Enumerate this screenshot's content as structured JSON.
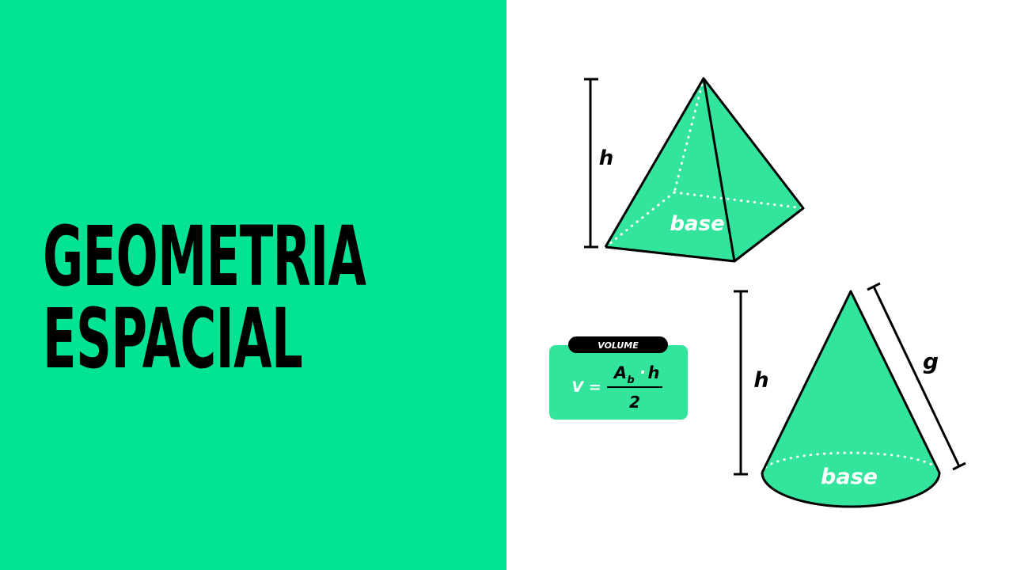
{
  "title": {
    "line1": "GEOMETRIA",
    "line2": "ESPACIAL"
  },
  "pyramid": {
    "height_label": "h",
    "base_label": "base"
  },
  "cone": {
    "height_label": "h",
    "slant_label": "g",
    "base_label": "base"
  },
  "formula": {
    "tag": "VOLUME",
    "lhs": "V =",
    "numerator_symbol": "A",
    "numerator_subscript": "b",
    "dot": "·",
    "numerator_height": "h",
    "denominator": "2"
  },
  "colors": {
    "panel": "#02e493",
    "shape_fill": "#33e49c",
    "ink": "#000000"
  }
}
